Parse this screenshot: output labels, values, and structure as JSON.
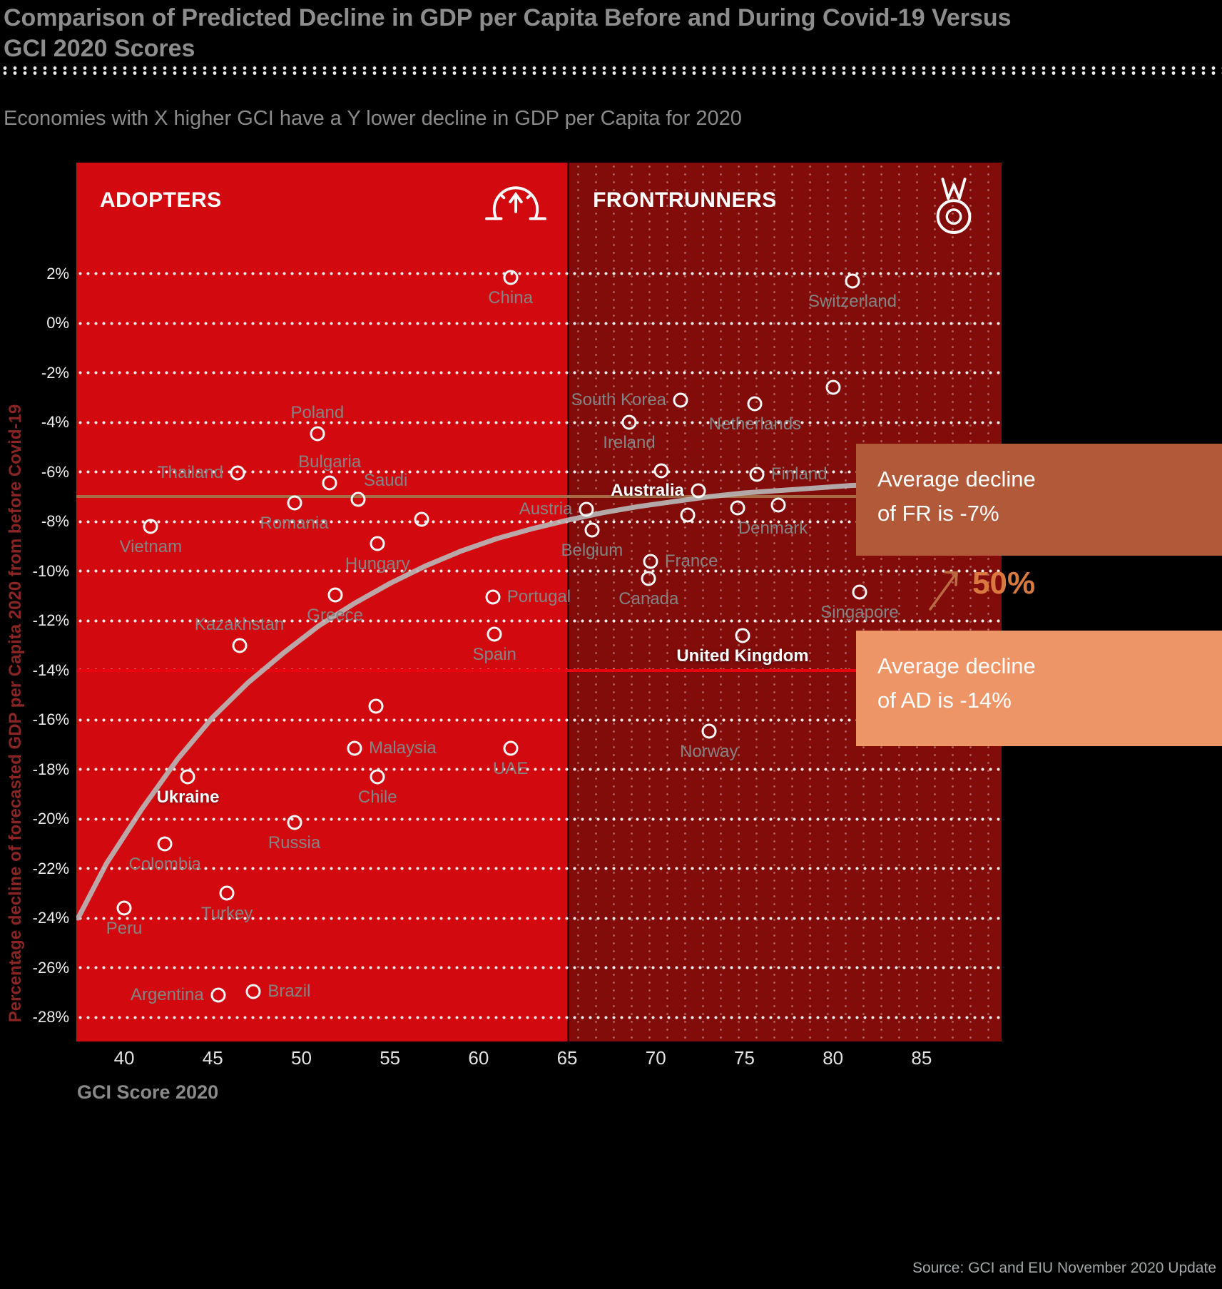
{
  "header": {
    "title_line1": "Comparison of Predicted Decline in GDP per Capita Before and During Covid-19 Versus",
    "title_line2": "GCI 2020 Scores",
    "subtitle": "Economies with X higher GCI have a Y lower decline in GDP per Capita for 2020"
  },
  "regions": {
    "adopters": {
      "label": "ADOPTERS",
      "color": "#d20a10",
      "icon": "gauge-icon"
    },
    "frontrunners": {
      "label": "FRONTRUNNERS",
      "color": "#820c0a",
      "icon": "medal-icon"
    }
  },
  "axes": {
    "x_label": "GCI Score 2020",
    "y_label": "Percentage decline of forecasted GDP per Capita 2020 from before Covid-19",
    "x_ticks": [
      40,
      45,
      50,
      55,
      60,
      65,
      70,
      75,
      80,
      85
    ],
    "y_ticks": [
      {
        "v": 2,
        "label": "2%"
      },
      {
        "v": 0,
        "label": "0%"
      },
      {
        "v": -2,
        "label": "-2%"
      },
      {
        "v": -4,
        "label": "-4%"
      },
      {
        "v": -6,
        "label": "-6%"
      },
      {
        "v": -8,
        "label": "-8%"
      },
      {
        "v": -10,
        "label": "-10%"
      },
      {
        "v": -12,
        "label": "-12%"
      },
      {
        "v": -14,
        "label": "-14%"
      },
      {
        "v": -16,
        "label": "-16%"
      },
      {
        "v": -18,
        "label": "-18%"
      },
      {
        "v": -20,
        "label": "-20%"
      },
      {
        "v": -22,
        "label": "-22%"
      },
      {
        "v": -24,
        "label": "-24%"
      },
      {
        "v": -26,
        "label": "-26%"
      },
      {
        "v": -28,
        "label": "-28%"
      }
    ]
  },
  "annotations": {
    "fr_callout": {
      "line1": "Average decline",
      "line2": "of FR is -7%",
      "value": -7,
      "bg": "#b2593a"
    },
    "ad_callout": {
      "line1": "Average decline",
      "line2": "of AD is -14%",
      "value": -14,
      "bg": "#ee9568"
    },
    "gain_label": "50%",
    "accent": "#d9793f",
    "arrow_color": "#bc6c42",
    "fr_line_color": "#a66a44",
    "ad_line_color": "#e8040f"
  },
  "source": "Source: GCI and EIU November 2020 Update",
  "chart_data": {
    "type": "scatter",
    "title": "Comparison of Predicted Decline in GDP per Capita Before and During Covid-19 Versus GCI 2020 Scores",
    "xlabel": "GCI Score 2020",
    "ylabel": "Percentage decline of forecasted GDP per Capita 2020 from before Covid-19",
    "x_range": [
      37.3,
      89.5
    ],
    "y_range": [
      -29.6,
      4.5
    ],
    "split_x": 65,
    "grid": "horizontal-dotted",
    "trend_color": "#b8b8b8",
    "points": [
      {
        "label": "China",
        "x": 61.8,
        "y": 1.85,
        "pos": "below"
      },
      {
        "label": "Poland",
        "x": 50.9,
        "y": -4.45,
        "pos": "above"
      },
      {
        "label": "Thailand",
        "x": 46.4,
        "y": -6.05,
        "pos": "left"
      },
      {
        "label": "Bulgaria",
        "x": 51.6,
        "y": -6.45,
        "pos": "above"
      },
      {
        "label": "Saudi",
        "x": 53.2,
        "y": -7.1,
        "pos": "above-right"
      },
      {
        "label": "Romania",
        "x": 49.6,
        "y": -7.25,
        "pos": "below"
      },
      {
        "label": "Vietnam",
        "x": 41.5,
        "y": -8.2,
        "pos": "below"
      },
      {
        "label": "",
        "x": 56.8,
        "y": -7.9
      },
      {
        "label": "Hungary",
        "x": 54.3,
        "y": -8.9,
        "pos": "below"
      },
      {
        "label": "Greece",
        "x": 51.9,
        "y": -10.95,
        "pos": "below"
      },
      {
        "label": "Portugal",
        "x": 60.8,
        "y": -11.05,
        "pos": "right"
      },
      {
        "label": "Spain",
        "x": 60.9,
        "y": -12.55,
        "pos": "below"
      },
      {
        "label": "Kazakhstan",
        "x": 46.5,
        "y": -13.0,
        "pos": "above"
      },
      {
        "label": "",
        "x": 54.2,
        "y": -15.45
      },
      {
        "label": "Malaysia",
        "x": 53.0,
        "y": -17.15,
        "pos": "right"
      },
      {
        "label": "UAE",
        "x": 61.8,
        "y": -17.15,
        "pos": "below"
      },
      {
        "label": "Ukraine",
        "x": 43.6,
        "y": -18.3,
        "pos": "below",
        "white": true
      },
      {
        "label": "Chile",
        "x": 54.3,
        "y": -18.3,
        "pos": "below"
      },
      {
        "label": "Russia",
        "x": 49.6,
        "y": -20.15,
        "pos": "below"
      },
      {
        "label": "Colombia",
        "x": 42.3,
        "y": -21.0,
        "pos": "below"
      },
      {
        "label": "Turkey",
        "x": 45.8,
        "y": -23.0,
        "pos": "below"
      },
      {
        "label": "Peru",
        "x": 40.0,
        "y": -23.6,
        "pos": "below"
      },
      {
        "label": "Argentina",
        "x": 45.3,
        "y": -27.1,
        "pos": "left"
      },
      {
        "label": "Brazil",
        "x": 47.3,
        "y": -26.95,
        "pos": "right"
      },
      {
        "label": "Switzerland",
        "x": 81.1,
        "y": 1.7,
        "pos": "below"
      },
      {
        "label": "",
        "x": 80.0,
        "y": -2.6
      },
      {
        "label": "South Korea",
        "x": 71.4,
        "y": -3.1,
        "pos": "left"
      },
      {
        "label": "Netherlands",
        "x": 75.6,
        "y": -3.25,
        "pos": "below"
      },
      {
        "label": "Ireland",
        "x": 68.5,
        "y": -4.0,
        "pos": "below"
      },
      {
        "label": "",
        "x": 70.3,
        "y": -5.95
      },
      {
        "label": "Finland",
        "x": 75.7,
        "y": -6.1,
        "pos": "right"
      },
      {
        "label": "Australia",
        "x": 72.4,
        "y": -6.75,
        "pos": "left",
        "white": true
      },
      {
        "label": "Austria",
        "x": 66.1,
        "y": -7.5,
        "pos": "left"
      },
      {
        "label": "",
        "x": 71.8,
        "y": -7.75
      },
      {
        "label": "Denmark",
        "x": 74.6,
        "y": -7.45,
        "pos": "below-right"
      },
      {
        "label": "",
        "x": 76.9,
        "y": -7.35
      },
      {
        "label": "Belgium",
        "x": 66.4,
        "y": -8.35,
        "pos": "below"
      },
      {
        "label": "France",
        "x": 69.7,
        "y": -9.6,
        "pos": "right"
      },
      {
        "label": "Canada",
        "x": 69.6,
        "y": -10.3,
        "pos": "below"
      },
      {
        "label": "Singapore",
        "x": 81.5,
        "y": -10.85,
        "pos": "below"
      },
      {
        "label": "United Kingdom",
        "x": 74.9,
        "y": -12.6,
        "pos": "below",
        "white": true
      },
      {
        "label": "Norway",
        "x": 73.0,
        "y": -16.45,
        "pos": "below"
      }
    ],
    "trend_line": [
      [
        37.4,
        -24.0
      ],
      [
        39,
        -21.8
      ],
      [
        41,
        -19.6
      ],
      [
        43,
        -17.6
      ],
      [
        45,
        -15.9
      ],
      [
        47,
        -14.5
      ],
      [
        49,
        -13.3
      ],
      [
        51,
        -12.2
      ],
      [
        53,
        -11.3
      ],
      [
        55,
        -10.5
      ],
      [
        57,
        -9.8
      ],
      [
        59,
        -9.2
      ],
      [
        61,
        -8.7
      ],
      [
        63,
        -8.3
      ],
      [
        65,
        -7.95
      ],
      [
        67,
        -7.65
      ],
      [
        69,
        -7.4
      ],
      [
        71,
        -7.2
      ],
      [
        73,
        -7.0
      ],
      [
        75,
        -6.85
      ],
      [
        77,
        -6.75
      ],
      [
        79,
        -6.65
      ],
      [
        81,
        -6.55
      ],
      [
        83,
        -6.5
      ],
      [
        85,
        -6.45
      ],
      [
        87,
        -6.4
      ],
      [
        89,
        -6.35
      ]
    ]
  }
}
